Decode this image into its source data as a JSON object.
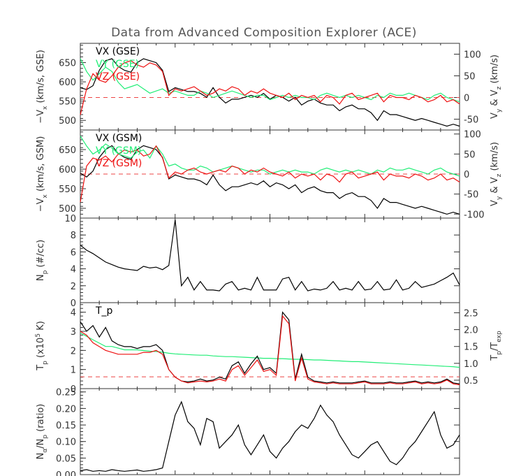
{
  "title": "Data from Advanced Composition Explorer (ACE)",
  "colors": {
    "black": "#000000",
    "green": "#22ee77",
    "red": "#ee1111",
    "dash": "#ee4444",
    "axis": "#333333"
  },
  "chart_data": [
    {
      "type": "line",
      "panel": "velocity-gse",
      "ylabel_left": "−V_x (km/s, GSE)",
      "ylabel_right": "V_y & V_z (km/s)",
      "ylim_left": [
        475,
        700
      ],
      "ylim_right": [
        -75,
        125
      ],
      "yticks_left": [
        500,
        550,
        600,
        650
      ],
      "yticks_right": [
        -50,
        0,
        50,
        100
      ],
      "reference_line": {
        "axis": "right",
        "value": 0,
        "style": "dashed"
      },
      "series": [
        {
          "name": "VX",
          "label": "VX (GSE)",
          "axis": "left",
          "color": "#000000",
          "values": [
            585,
            580,
            590,
            630,
            655,
            660,
            640,
            630,
            625,
            650,
            660,
            655,
            650,
            630,
            575,
            585,
            580,
            575,
            575,
            570,
            560,
            585,
            560,
            545,
            555,
            555,
            560,
            565,
            560,
            570,
            555,
            565,
            560,
            550,
            560,
            540,
            550,
            555,
            545,
            540,
            540,
            525,
            535,
            540,
            530,
            530,
            520,
            500,
            525,
            515,
            515,
            510,
            505,
            500,
            505,
            500,
            495,
            490,
            485,
            490,
            485
          ]
        },
        {
          "name": "VY",
          "label": "VY (GSE)",
          "axis": "right",
          "color": "#22ee77",
          "values": [
            90,
            60,
            40,
            55,
            70,
            60,
            35,
            20,
            25,
            30,
            20,
            10,
            15,
            20,
            10,
            15,
            10,
            5,
            5,
            15,
            10,
            0,
            5,
            10,
            15,
            10,
            5,
            0,
            5,
            5,
            -5,
            0,
            5,
            0,
            5,
            0,
            0,
            -5,
            5,
            10,
            5,
            0,
            5,
            0,
            5,
            0,
            -5,
            5,
            0,
            10,
            5,
            5,
            10,
            5,
            0,
            -5,
            5,
            10,
            0,
            -5,
            -10
          ]
        },
        {
          "name": "VZ",
          "label": "VZ (GSE)",
          "axis": "right",
          "color": "#ee1111",
          "values": [
            -40,
            20,
            55,
            40,
            35,
            50,
            70,
            80,
            85,
            75,
            70,
            80,
            75,
            60,
            5,
            20,
            15,
            20,
            25,
            15,
            5,
            10,
            20,
            15,
            25,
            20,
            5,
            15,
            10,
            20,
            10,
            5,
            0,
            10,
            -5,
            5,
            0,
            5,
            -10,
            5,
            0,
            -15,
            5,
            10,
            -5,
            0,
            5,
            10,
            -10,
            5,
            0,
            0,
            -5,
            5,
            0,
            -10,
            -5,
            5,
            -10,
            -5,
            -15
          ]
        }
      ]
    },
    {
      "type": "line",
      "panel": "velocity-gsm",
      "ylabel_left": "−V_x (km/s, GSM)",
      "ylabel_right": "V_y & V_z (km/s)",
      "ylim_left": [
        475,
        700
      ],
      "ylim_right": [
        -110,
        110
      ],
      "yticks_left": [
        500,
        550,
        600,
        650
      ],
      "yticks_right": [
        -100,
        -50,
        0,
        50,
        100
      ],
      "reference_line": {
        "axis": "right",
        "value": 0,
        "style": "dashed"
      },
      "series": [
        {
          "name": "VX",
          "label": "VX (GSM)",
          "axis": "left",
          "color": "#000000",
          "values": [
            590,
            580,
            595,
            630,
            650,
            660,
            640,
            630,
            625,
            650,
            660,
            655,
            650,
            630,
            575,
            585,
            580,
            575,
            575,
            570,
            560,
            585,
            560,
            545,
            555,
            555,
            560,
            565,
            560,
            570,
            555,
            565,
            560,
            550,
            560,
            540,
            550,
            555,
            545,
            540,
            540,
            525,
            535,
            540,
            530,
            530,
            520,
            500,
            525,
            515,
            515,
            510,
            505,
            500,
            505,
            500,
            495,
            490,
            485,
            490,
            485
          ]
        },
        {
          "name": "VY",
          "label": "VY (GSM)",
          "axis": "right",
          "color": "#22ee77",
          "values": [
            95,
            70,
            50,
            60,
            75,
            65,
            50,
            45,
            40,
            55,
            60,
            40,
            70,
            50,
            20,
            25,
            15,
            10,
            10,
            20,
            15,
            5,
            10,
            15,
            20,
            15,
            10,
            5,
            10,
            10,
            0,
            5,
            10,
            5,
            10,
            5,
            5,
            0,
            10,
            15,
            10,
            5,
            10,
            5,
            10,
            5,
            0,
            10,
            5,
            15,
            10,
            10,
            15,
            10,
            5,
            0,
            10,
            15,
            5,
            0,
            -5
          ]
        },
        {
          "name": "VZ",
          "label": "VZ (GSM)",
          "axis": "right",
          "color": "#ee1111",
          "values": [
            -70,
            20,
            40,
            35,
            45,
            30,
            50,
            60,
            55,
            60,
            45,
            50,
            70,
            40,
            -10,
            5,
            0,
            10,
            15,
            5,
            0,
            5,
            10,
            5,
            20,
            15,
            0,
            10,
            5,
            15,
            5,
            0,
            -5,
            5,
            -10,
            0,
            -5,
            0,
            -15,
            0,
            -5,
            -20,
            0,
            5,
            -10,
            -5,
            0,
            5,
            -15,
            0,
            -5,
            -5,
            -10,
            0,
            -5,
            -15,
            -10,
            0,
            -15,
            -10,
            -20
          ]
        }
      ]
    },
    {
      "type": "line",
      "panel": "density",
      "ylabel_left": "N_p (#/cc)",
      "ylim_left": [
        0,
        10
      ],
      "yticks_left": [
        0,
        2,
        4,
        6,
        8,
        10
      ],
      "series": [
        {
          "name": "Np",
          "axis": "left",
          "color": "#000000",
          "values": [
            6.8,
            6.2,
            5.8,
            5.3,
            4.8,
            4.5,
            4.2,
            4.0,
            3.9,
            3.8,
            4.3,
            4.1,
            4.2,
            3.9,
            4.4,
            9.8,
            2.0,
            3.0,
            1.5,
            2.5,
            1.5,
            1.5,
            1.4,
            2.2,
            2.5,
            1.5,
            1.7,
            1.5,
            3.0,
            1.5,
            1.5,
            1.5,
            2.8,
            3.0,
            1.5,
            2.5,
            1.4,
            1.6,
            1.5,
            1.7,
            2.5,
            1.5,
            1.7,
            1.5,
            2.5,
            1.5,
            1.6,
            2.5,
            1.5,
            1.6,
            2.7,
            1.5,
            1.7,
            2.5,
            1.8,
            2.0,
            2.2,
            2.6,
            3.0,
            3.5,
            2.1
          ]
        }
      ]
    },
    {
      "type": "line",
      "panel": "temperature",
      "ylabel_left": "T_p (×10^5 K)",
      "ylabel_right": "T_p/T_exp",
      "ylim_left": [
        0,
        4.5
      ],
      "ylim_right": [
        0.25,
        2.8
      ],
      "yticks_left": [
        0,
        1,
        2,
        3,
        4
      ],
      "yticks_right": [
        0.5,
        1.0,
        1.5,
        2.0,
        2.5
      ],
      "reference_line": {
        "axis": "right",
        "value": 0.6,
        "style": "dashed"
      },
      "series": [
        {
          "name": "Tp",
          "label": "T_p",
          "axis": "left",
          "color": "#000000",
          "values": [
            3.5,
            3.0,
            3.3,
            2.7,
            3.2,
            2.5,
            2.3,
            2.2,
            2.2,
            2.1,
            2.2,
            2.2,
            2.3,
            2.0,
            1.0,
            0.6,
            0.4,
            0.35,
            0.4,
            0.5,
            0.4,
            0.45,
            0.6,
            0.5,
            1.2,
            1.4,
            0.8,
            1.3,
            1.7,
            1.0,
            1.1,
            0.8,
            4.0,
            3.6,
            0.5,
            1.8,
            0.6,
            0.4,
            0.35,
            0.3,
            0.35,
            0.3,
            0.3,
            0.3,
            0.35,
            0.4,
            0.3,
            0.3,
            0.3,
            0.35,
            0.3,
            0.3,
            0.35,
            0.4,
            0.3,
            0.35,
            0.3,
            0.35,
            0.5,
            0.3,
            0.25
          ]
        },
        {
          "name": "Texp",
          "axis": "left",
          "color": "#ee1111",
          "values": [
            3.0,
            2.8,
            2.4,
            2.2,
            2.0,
            1.9,
            1.8,
            1.8,
            1.8,
            1.8,
            1.9,
            1.9,
            2.0,
            1.8,
            1.0,
            0.6,
            0.4,
            0.3,
            0.35,
            0.4,
            0.35,
            0.4,
            0.5,
            0.4,
            1.0,
            1.2,
            0.7,
            1.1,
            1.5,
            0.9,
            1.0,
            0.7,
            3.8,
            3.4,
            0.4,
            1.6,
            0.5,
            0.35,
            0.3,
            0.25,
            0.3,
            0.25,
            0.25,
            0.25,
            0.3,
            0.35,
            0.25,
            0.25,
            0.25,
            0.3,
            0.25,
            0.25,
            0.3,
            0.35,
            0.25,
            0.3,
            0.25,
            0.3,
            0.45,
            0.25,
            0.2
          ]
        },
        {
          "name": "Ratio",
          "axis": "right",
          "color": "#22ee77",
          "values": [
            1.9,
            1.8,
            1.7,
            1.6,
            1.5,
            1.5,
            1.45,
            1.4,
            1.4,
            1.4,
            1.38,
            1.36,
            1.35,
            1.33,
            1.3,
            1.28,
            1.27,
            1.26,
            1.25,
            1.24,
            1.24,
            1.22,
            1.21,
            1.2,
            1.2,
            1.19,
            1.18,
            1.17,
            1.16,
            1.15,
            1.15,
            1.14,
            1.14,
            1.13,
            1.12,
            1.12,
            1.11,
            1.1,
            1.1,
            1.09,
            1.08,
            1.07,
            1.06,
            1.05,
            1.05,
            1.04,
            1.03,
            1.02,
            1.01,
            1.0,
            0.99,
            0.98,
            0.97,
            0.96,
            0.95,
            0.94,
            0.93,
            0.92,
            0.91,
            0.9,
            0.88
          ]
        }
      ]
    },
    {
      "type": "line",
      "panel": "alpha-ratio",
      "ylabel_left": "N_α/N_p (ratio)",
      "ylim_left": [
        0,
        0.26
      ],
      "yticks_left": [
        0.0,
        0.05,
        0.1,
        0.15,
        0.2,
        0.25
      ],
      "series": [
        {
          "name": "NaNp",
          "axis": "left",
          "color": "#000000",
          "values": [
            0.012,
            0.015,
            0.01,
            0.012,
            0.01,
            0.015,
            0.012,
            0.01,
            0.012,
            0.014,
            0.01,
            0.012,
            0.015,
            0.02,
            0.1,
            0.18,
            0.22,
            0.16,
            0.14,
            0.09,
            0.17,
            0.16,
            0.08,
            0.1,
            0.12,
            0.15,
            0.09,
            0.06,
            0.09,
            0.12,
            0.07,
            0.05,
            0.08,
            0.1,
            0.13,
            0.15,
            0.14,
            0.17,
            0.21,
            0.18,
            0.16,
            0.12,
            0.09,
            0.06,
            0.05,
            0.07,
            0.09,
            0.1,
            0.07,
            0.04,
            0.03,
            0.05,
            0.08,
            0.1,
            0.13,
            0.16,
            0.19,
            0.12,
            0.08,
            0.09,
            0.12
          ]
        }
      ]
    }
  ]
}
